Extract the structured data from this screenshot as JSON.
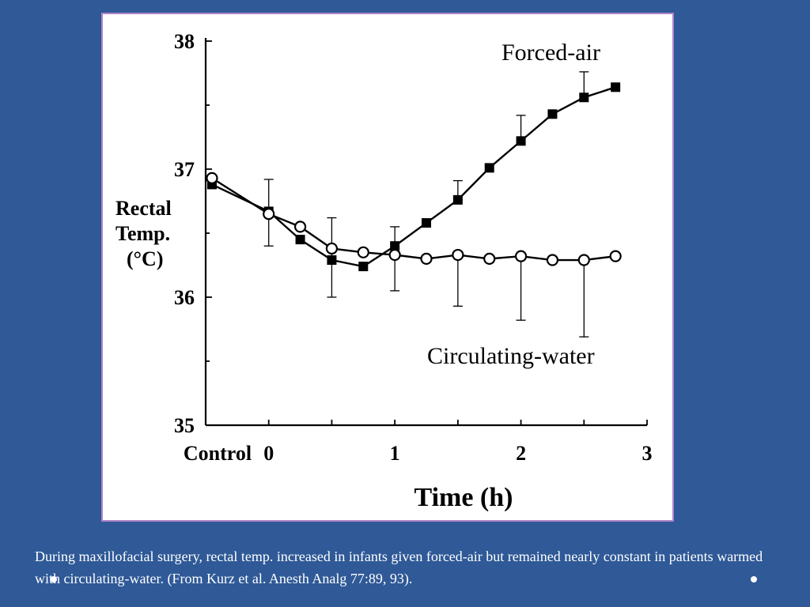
{
  "chart_data": {
    "type": "line",
    "xlabel": "Time (h)",
    "ylabel": [
      "Rectal",
      "Temp.",
      "(°C)"
    ],
    "xlim": [
      -0.5,
      3
    ],
    "ylim": [
      35,
      38
    ],
    "x_ticks": [
      {
        "value": -0.5,
        "label": "Control"
      },
      {
        "value": 0,
        "label": "0"
      },
      {
        "value": 1,
        "label": "1"
      },
      {
        "value": 2,
        "label": "2"
      },
      {
        "value": 3,
        "label": "3"
      }
    ],
    "y_ticks": [
      {
        "value": 35,
        "label": "35"
      },
      {
        "value": 36,
        "label": "36"
      },
      {
        "value": 37,
        "label": "37"
      },
      {
        "value": 38,
        "label": "38"
      }
    ],
    "series": [
      {
        "name": "Forced-air",
        "marker": "filled-square",
        "x": [
          -0.45,
          0,
          0.25,
          0.5,
          0.75,
          1,
          1.25,
          1.5,
          1.75,
          2,
          2.25,
          2.5,
          2.75
        ],
        "y": [
          36.88,
          36.67,
          36.45,
          36.29,
          36.24,
          36.4,
          36.58,
          36.76,
          37.01,
          37.22,
          37.43,
          37.56,
          37.64
        ],
        "error_up": [
          0,
          0.25,
          0,
          0.33,
          0,
          0.15,
          0,
          0.15,
          0,
          0.2,
          0,
          0.2,
          0
        ]
      },
      {
        "name": "Circulating-water",
        "marker": "open-circle",
        "x": [
          -0.45,
          0,
          0.25,
          0.5,
          0.75,
          1,
          1.25,
          1.5,
          1.75,
          2,
          2.25,
          2.5,
          2.75
        ],
        "y": [
          36.93,
          36.65,
          36.55,
          36.38,
          36.35,
          36.33,
          36.3,
          36.33,
          36.3,
          36.32,
          36.29,
          36.29,
          36.32
        ],
        "error_down": [
          0,
          0.25,
          0,
          0.38,
          0,
          0.28,
          0,
          0.4,
          0,
          0.5,
          0,
          0.6,
          0
        ]
      }
    ]
  },
  "caption": "During maxillofacial surgery, rectal temp. increased in infants given forced-air but remained nearly constant in patients warmed with circulating-water. (From Kurz et al. Anesth Analg 77:89, 93).",
  "colors": {
    "background": "#2f5997",
    "panel": "#ffffff",
    "panel_border": "#b085c8",
    "ink": "#000000",
    "caption_text": "#ffffff"
  }
}
